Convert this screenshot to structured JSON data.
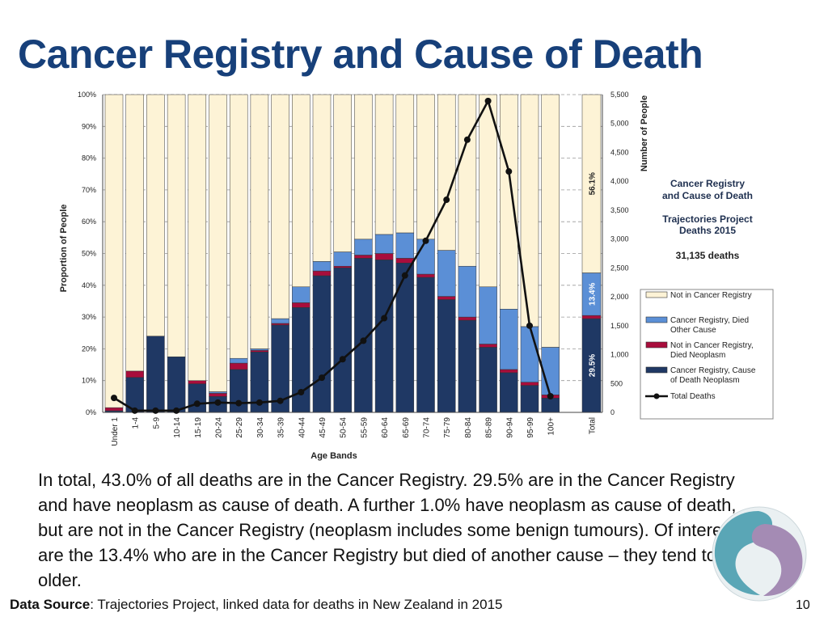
{
  "slide": {
    "title": "Cancer Registry and Cause of Death",
    "body": "In total, 43.0% of all deaths are in the Cancer Registry. 29.5% are in the Cancer Registry and have neoplasm as cause of death. A further 1.0% have neoplasm as cause of death, but are not in the Cancer Registry (neoplasm includes some benign tumours). Of interest are the 13.4% who are in the Cancer Registry but died of another cause – they tend to be older.",
    "source_label": "Data Source",
    "source_text": ": Trajectories Project, linked data for deaths in New Zealand in 2015",
    "page_number": "10"
  },
  "colors": {
    "title": "#17407a",
    "not_in_registry": "#fdf3d6",
    "registry_other_cause": "#5b8fd6",
    "not_registry_neoplasm": "#a80d3c",
    "registry_neoplasm": "#1f3864",
    "line": "#111111",
    "logo_teal": "#5aa6b6",
    "logo_purple": "#a48bb4"
  },
  "chart_data": {
    "type": "bar",
    "stacked": true,
    "title_lines": [
      "Cancer Registry",
      "and Cause of Death"
    ],
    "subtitle_lines": [
      "Trajectories Project",
      "Deaths 2015"
    ],
    "total_note": "31,135 deaths",
    "xlabel": "Age Bands",
    "ylabel": "Proportion of People",
    "y2label": "Number of People",
    "ylim": [
      0,
      100
    ],
    "y2lim": [
      0,
      5500
    ],
    "yticks": [
      "0%",
      "10%",
      "20%",
      "30%",
      "40%",
      "50%",
      "60%",
      "70%",
      "80%",
      "90%",
      "100%"
    ],
    "y2ticks": [
      "0",
      "500",
      "1,000",
      "1,500",
      "2,000",
      "2,500",
      "3,000",
      "3,500",
      "4,000",
      "4,500",
      "5,000",
      "5,500"
    ],
    "categories": [
      "Under 1",
      "1-4",
      "5-9",
      "10-14",
      "15-19",
      "20-24",
      "25-29",
      "30-34",
      "35-39",
      "40-44",
      "45-49",
      "50-54",
      "55-59",
      "60-64",
      "65-69",
      "70-74",
      "75-79",
      "80-84",
      "85-89",
      "90-94",
      "95-99",
      "100+"
    ],
    "series": [
      {
        "name": "Cancer Registry, Cause of Death Neoplasm",
        "values": [
          0.5,
          11,
          24,
          17.5,
          9,
          5,
          13.5,
          19,
          27.5,
          33,
          43,
          45.5,
          48.5,
          48,
          47,
          42.5,
          35.5,
          29,
          20.5,
          12.5,
          8.5,
          4.5
        ]
      },
      {
        "name": "Not in Cancer Registry, Died Neoplasm",
        "values": [
          1,
          2,
          0,
          0,
          1,
          1,
          2,
          0.5,
          0.5,
          1.5,
          1.5,
          0.5,
          1,
          2,
          1.5,
          1,
          1,
          1,
          1,
          1,
          1,
          1
        ]
      },
      {
        "name": "Cancer Registry, Died Other Cause",
        "values": [
          0,
          0,
          0,
          0,
          0,
          0.5,
          1.5,
          0.5,
          1.5,
          5,
          3,
          4.5,
          5,
          6,
          8,
          11,
          14.5,
          16,
          18,
          19,
          17.5,
          15
        ]
      },
      {
        "name": "Not in Cancer Registry",
        "values": [
          98.5,
          87,
          76,
          82.5,
          90,
          93.5,
          83,
          80,
          70.5,
          60.5,
          52.5,
          49.5,
          45.5,
          44,
          43.5,
          45.5,
          49,
          54,
          60.5,
          67.5,
          73,
          79.5
        ]
      }
    ],
    "total_column": {
      "label": "Total",
      "values": [
        29.5,
        1.0,
        13.4,
        56.1
      ],
      "value_labels": [
        "29.5%",
        "",
        "13.4%",
        "56.1%"
      ]
    },
    "line_series": {
      "name": "Total Deaths",
      "axis": "secondary",
      "values": [
        250,
        30,
        30,
        30,
        150,
        170,
        160,
        170,
        200,
        350,
        600,
        920,
        1240,
        1630,
        2370,
        2970,
        3680,
        4720,
        5390,
        4170,
        1500,
        280
      ]
    },
    "legend": [
      "Not in Cancer Registry",
      "Cancer Registry, Died Other Cause",
      "Not in Cancer Registry, Died Neoplasm",
      "Cancer Registry, Cause of Death Neoplasm",
      "Total Deaths"
    ],
    "legend_lines": [
      [
        "Not in Cancer Registry"
      ],
      [
        "Cancer Registry, Died",
        "Other Cause"
      ],
      [
        "Not in Cancer Registry,",
        "Died Neoplasm"
      ],
      [
        "Cancer Registry, Cause",
        "of Death Neoplasm"
      ],
      [
        "Total Deaths"
      ]
    ]
  }
}
